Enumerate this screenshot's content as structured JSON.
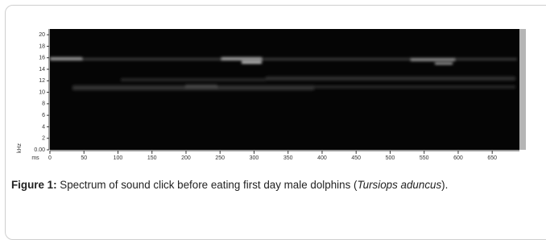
{
  "figure": {
    "y_label": "kHz",
    "x_label": "ms",
    "ylim": [
      0,
      21
    ],
    "yticks": [
      {
        "value": 0,
        "label": "0.00"
      },
      2,
      4,
      6,
      8,
      10,
      12,
      14,
      16,
      18,
      20
    ],
    "xlim": [
      0,
      690
    ],
    "xticks": [
      0,
      50,
      100,
      150,
      200,
      250,
      300,
      350,
      400,
      450,
      500,
      550,
      600,
      650
    ]
  },
  "caption": {
    "label": "Figure 1:",
    "text": "Spectrum of sound click before eating first day male dolphins (",
    "species": "Tursiops aduncus",
    "end": ")."
  }
}
